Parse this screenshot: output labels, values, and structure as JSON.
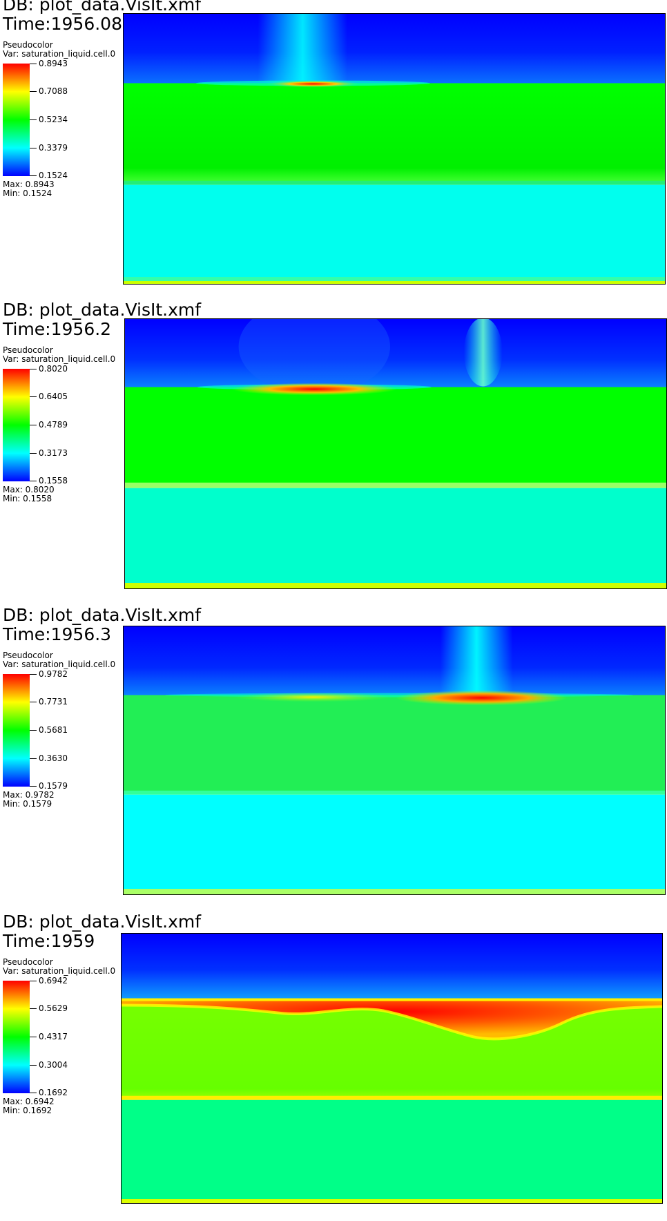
{
  "colors": {
    "colormap": [
      "#ff0000",
      "#ffff00",
      "#00ff00",
      "#00ffff",
      "#0000ff"
    ]
  },
  "panels": [
    {
      "db": "DB: plot_data.VisIt.xmf",
      "time": "Time:1956.08",
      "plot_type": "Pseudocolor",
      "var": "Var: saturation_liquid.cell.0",
      "ticks": [
        "0.8943",
        "0.7088",
        "0.5234",
        "0.3379",
        "0.1524"
      ],
      "max_label": "Max:  0.8943",
      "min_label": "Min:  0.1524",
      "layer_colors": {
        "top": "#0000ff",
        "middle": "#00ff00",
        "bottom": "#00ffff"
      }
    },
    {
      "db": "DB: plot_data.VisIt.xmf",
      "time": "Time:1956.2",
      "plot_type": "Pseudocolor",
      "var": "Var: saturation_liquid.cell.0",
      "ticks": [
        "0.8020",
        "0.6405",
        "0.4789",
        "0.3173",
        "0.1558"
      ],
      "max_label": "Max:  0.8020",
      "min_label": "Min:  0.1558",
      "layer_colors": {
        "top": "#0000ff",
        "middle": "#00ff00",
        "bottom": "#00ffcc"
      }
    },
    {
      "db": "DB: plot_data.VisIt.xmf",
      "time": "Time:1956.3",
      "plot_type": "Pseudocolor",
      "var": "Var: saturation_liquid.cell.0",
      "ticks": [
        "0.9782",
        "0.7731",
        "0.5681",
        "0.3630",
        "0.1579"
      ],
      "max_label": "Max:  0.9782",
      "min_label": "Min:  0.1579",
      "layer_colors": {
        "top": "#0000ff",
        "middle": "#22ee55",
        "bottom": "#00ffff"
      }
    },
    {
      "db": "DB: plot_data.VisIt.xmf",
      "time": "Time:1959",
      "plot_type": "Pseudocolor",
      "var": "Var: saturation_liquid.cell.0",
      "ticks": [
        "0.6942",
        "0.5629",
        "0.4317",
        "0.3004",
        "0.1692"
      ],
      "max_label": "Max:  0.6942",
      "min_label": "Min:  0.1692",
      "layer_colors": {
        "top": "#0000ff",
        "middle": "#66ff00",
        "bottom": "#00ff88"
      }
    }
  ],
  "chart_data": {
    "type": "heatmap",
    "colormap": "blue-cyan-green-yellow-red",
    "frames": [
      {
        "time": 1956.08,
        "min": 0.1524,
        "max": 0.8943
      },
      {
        "time": 1956.2,
        "min": 0.1558,
        "max": 0.802
      },
      {
        "time": 1956.3,
        "min": 0.1579,
        "max": 0.9782
      },
      {
        "time": 1959,
        "min": 0.1692,
        "max": 0.6942
      }
    ]
  }
}
